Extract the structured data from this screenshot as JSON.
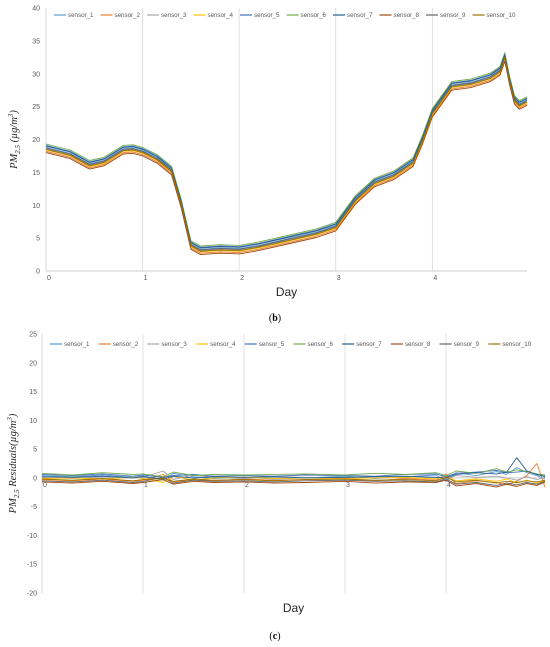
{
  "colors": [
    "#5B9BD5",
    "#ED7D31",
    "#A5A5A5",
    "#FFC000",
    "#4472C4",
    "#70AD47",
    "#255E91",
    "#9E480E",
    "#636363",
    "#997300"
  ],
  "chart_data": [
    {
      "type": "line",
      "panel": "(b)",
      "panel_letter": "b",
      "xlabel": "Day",
      "ylabel": "PM2.5 (µg/m³)",
      "ylabel_main": "PM",
      "ylabel_sub": "2.5",
      "ylabel_rest": " (µg/m",
      "ylabel_sup": "3",
      "ylabel_close": ")",
      "xlim": [
        0,
        4.98
      ],
      "ylim": [
        0,
        40
      ],
      "xticks": [
        0,
        1,
        2,
        3,
        4
      ],
      "yticks": [
        0,
        5,
        10,
        15,
        20,
        25,
        30,
        35,
        40
      ],
      "grid": "vertical",
      "legend_position": "top",
      "x": [
        0,
        0.25,
        0.45,
        0.6,
        0.8,
        0.9,
        1.0,
        1.15,
        1.3,
        1.4,
        1.5,
        1.6,
        1.8,
        2.0,
        2.2,
        2.5,
        2.8,
        3.0,
        3.2,
        3.4,
        3.6,
        3.8,
        3.9,
        4.0,
        4.2,
        4.4,
        4.6,
        4.7,
        4.75,
        4.8,
        4.85,
        4.9,
        4.98
      ],
      "series": [
        {
          "name": "sensor_1",
          "values": [
            18.8,
            17.9,
            16.3,
            16.8,
            18.6,
            18.7,
            18.3,
            17.2,
            15.4,
            10.4,
            4.1,
            3.3,
            3.5,
            3.4,
            3.9,
            4.9,
            5.9,
            6.9,
            10.9,
            13.6,
            14.7,
            16.7,
            20.2,
            24.2,
            28.3,
            28.7,
            29.6,
            30.6,
            32.7,
            29.1,
            26.2,
            25.4,
            26.0
          ]
        },
        {
          "name": "sensor_2",
          "values": [
            18.2,
            17.3,
            15.7,
            16.2,
            18.0,
            18.1,
            17.7,
            16.6,
            14.8,
            9.8,
            3.5,
            2.7,
            2.9,
            2.8,
            3.3,
            4.3,
            5.3,
            6.3,
            10.3,
            13.0,
            14.1,
            16.1,
            19.6,
            23.6,
            27.7,
            28.1,
            29.0,
            30.0,
            32.1,
            28.5,
            25.6,
            24.8,
            25.4
          ]
        },
        {
          "name": "sensor_3",
          "values": [
            18.6,
            17.7,
            16.1,
            16.6,
            18.4,
            18.5,
            18.1,
            17.0,
            15.2,
            10.2,
            3.9,
            3.1,
            3.3,
            3.2,
            3.7,
            4.7,
            5.7,
            6.7,
            10.7,
            13.4,
            14.5,
            16.5,
            20.0,
            24.0,
            28.1,
            28.5,
            29.4,
            30.4,
            32.5,
            28.9,
            26.0,
            25.2,
            25.8
          ]
        },
        {
          "name": "sensor_4",
          "values": [
            18.4,
            17.5,
            15.9,
            16.4,
            18.2,
            18.3,
            17.9,
            16.8,
            15.0,
            10.0,
            3.7,
            2.9,
            3.1,
            3.0,
            3.5,
            4.5,
            5.5,
            6.5,
            10.5,
            13.2,
            14.3,
            16.3,
            19.8,
            23.8,
            27.9,
            28.3,
            29.2,
            30.2,
            32.3,
            28.7,
            25.8,
            25.0,
            25.6
          ]
        },
        {
          "name": "sensor_5",
          "values": [
            19.1,
            18.2,
            16.6,
            17.1,
            18.9,
            19.0,
            18.6,
            17.5,
            15.7,
            10.7,
            4.4,
            3.6,
            3.8,
            3.7,
            4.2,
            5.2,
            6.2,
            7.2,
            11.2,
            13.9,
            15.0,
            17.0,
            20.5,
            24.5,
            28.6,
            29.0,
            29.9,
            30.9,
            33.0,
            29.4,
            26.5,
            25.7,
            26.3
          ]
        },
        {
          "name": "sensor_6",
          "values": [
            19.3,
            18.4,
            16.8,
            17.3,
            19.1,
            19.2,
            18.8,
            17.7,
            15.9,
            10.9,
            4.6,
            3.8,
            4.0,
            3.9,
            4.4,
            5.4,
            6.4,
            7.4,
            11.4,
            14.1,
            15.2,
            17.2,
            20.7,
            24.7,
            28.8,
            29.2,
            30.1,
            31.1,
            33.2,
            29.6,
            26.7,
            25.9,
            26.5
          ]
        },
        {
          "name": "sensor_7",
          "values": [
            19.0,
            18.1,
            16.5,
            17.0,
            18.8,
            18.9,
            18.5,
            17.4,
            15.6,
            10.6,
            4.3,
            3.5,
            3.7,
            3.6,
            4.1,
            5.1,
            6.1,
            7.1,
            11.1,
            13.8,
            14.9,
            16.9,
            20.4,
            24.4,
            28.5,
            28.9,
            29.8,
            30.8,
            32.9,
            29.3,
            26.4,
            25.6,
            26.2
          ]
        },
        {
          "name": "sensor_8",
          "values": [
            18.0,
            17.1,
            15.5,
            16.0,
            17.8,
            17.9,
            17.5,
            16.4,
            14.6,
            9.6,
            3.3,
            2.5,
            2.7,
            2.6,
            3.1,
            4.1,
            5.1,
            6.1,
            10.1,
            12.8,
            13.9,
            15.9,
            19.4,
            23.4,
            27.5,
            27.9,
            28.8,
            29.8,
            31.9,
            28.3,
            25.4,
            24.6,
            25.2
          ]
        },
        {
          "name": "sensor_9",
          "values": [
            18.7,
            17.8,
            16.2,
            16.7,
            18.5,
            18.6,
            18.2,
            17.1,
            15.3,
            10.3,
            4.0,
            3.2,
            3.4,
            3.3,
            3.8,
            4.8,
            5.8,
            6.8,
            10.8,
            13.5,
            14.6,
            16.6,
            20.1,
            24.1,
            28.2,
            28.6,
            29.5,
            30.5,
            32.6,
            29.0,
            26.1,
            25.3,
            25.9
          ]
        },
        {
          "name": "sensor_10",
          "values": [
            18.5,
            17.6,
            16.0,
            16.5,
            18.3,
            18.4,
            18.0,
            16.9,
            15.1,
            10.1,
            3.8,
            3.0,
            3.2,
            3.1,
            3.6,
            4.6,
            5.6,
            6.6,
            10.6,
            13.3,
            14.4,
            16.4,
            19.9,
            23.9,
            28.0,
            28.4,
            29.3,
            30.3,
            32.4,
            28.8,
            25.9,
            25.1,
            25.7
          ]
        }
      ]
    },
    {
      "type": "line",
      "panel": "(c)",
      "panel_letter": "c",
      "xlabel": "Day",
      "ylabel": "PM2.5 Residuals(µg/m³)",
      "ylabel_main": "PM",
      "ylabel_sub": "2.5",
      "ylabel_rest": " Residuals(µg/m",
      "ylabel_sup": "3",
      "ylabel_close": ")",
      "xlim": [
        0,
        4.98
      ],
      "ylim": [
        -20,
        25
      ],
      "xticks": [
        0,
        1,
        2,
        3,
        4
      ],
      "yticks": [
        -20,
        -15,
        -10,
        -5,
        0,
        5,
        10,
        15,
        20,
        25
      ],
      "grid": "vertical",
      "legend_position": "top",
      "x": [
        0,
        0.3,
        0.6,
        0.9,
        1.0,
        1.2,
        1.3,
        1.5,
        1.7,
        2.0,
        2.3,
        2.6,
        3.0,
        3.3,
        3.6,
        3.9,
        4.0,
        4.1,
        4.3,
        4.5,
        4.6,
        4.7,
        4.8,
        4.9,
        4.98
      ],
      "series": [
        {
          "name": "sensor_1",
          "values": [
            0.4,
            0.2,
            0.5,
            0.1,
            0.3,
            -0.4,
            0.8,
            0.2,
            -0.1,
            0.1,
            -0.2,
            0.0,
            0.3,
            -0.1,
            0.2,
            0.5,
            -0.6,
            0.9,
            0.4,
            1.1,
            0.6,
            1.8,
            0.9,
            0.4,
            -0.2
          ]
        },
        {
          "name": "sensor_2",
          "values": [
            -0.3,
            -0.5,
            -0.2,
            -0.6,
            -0.4,
            0.6,
            -0.7,
            -0.3,
            -0.5,
            -0.2,
            -0.4,
            -0.3,
            -0.2,
            -0.5,
            -0.1,
            -0.4,
            0.7,
            -1.0,
            -0.5,
            -0.8,
            -1.2,
            -0.6,
            0.4,
            2.5,
            -1.6
          ]
        },
        {
          "name": "sensor_3",
          "values": [
            0.1,
            -0.1,
            0.2,
            0.0,
            0.1,
            1.2,
            -0.3,
            0.5,
            0.1,
            -0.1,
            0.2,
            0.1,
            0.0,
            0.2,
            0.0,
            0.1,
            -0.2,
            0.4,
            0.1,
            0.3,
            0.0,
            -0.4,
            0.2,
            -0.3,
            0.1
          ]
        },
        {
          "name": "sensor_4",
          "values": [
            -0.1,
            0.0,
            -0.2,
            0.1,
            -0.1,
            -0.8,
            0.3,
            -0.4,
            0.0,
            0.1,
            -0.1,
            0.0,
            -0.1,
            0.0,
            0.1,
            -0.2,
            0.3,
            -0.5,
            -0.2,
            -0.6,
            -0.2,
            -0.9,
            -0.4,
            -0.9,
            -0.5
          ]
        },
        {
          "name": "sensor_5",
          "values": [
            0.6,
            0.4,
            0.7,
            0.3,
            0.5,
            0.1,
            0.4,
            0.6,
            0.3,
            0.4,
            0.3,
            0.5,
            0.4,
            0.3,
            0.6,
            0.7,
            0.2,
            0.8,
            1.0,
            1.3,
            0.9,
            1.0,
            1.2,
            0.6,
            0.3
          ]
        },
        {
          "name": "sensor_6",
          "values": [
            0.8,
            0.5,
            0.9,
            0.6,
            0.7,
            0.2,
            1.0,
            0.4,
            0.6,
            0.5,
            0.6,
            0.7,
            0.5,
            0.8,
            0.6,
            0.9,
            0.4,
            1.2,
            0.8,
            1.6,
            1.0,
            1.4,
            1.1,
            0.7,
            0.5
          ]
        },
        {
          "name": "sensor_7",
          "values": [
            0.2,
            0.1,
            0.3,
            0.0,
            0.2,
            -0.2,
            0.3,
            0.0,
            0.2,
            0.1,
            0.2,
            0.0,
            0.1,
            0.2,
            0.3,
            0.1,
            0.0,
            0.6,
            0.9,
            0.7,
            1.0,
            3.5,
            1.2,
            0.6,
            0.2
          ]
        },
        {
          "name": "sensor_8",
          "values": [
            -0.7,
            -0.9,
            -0.6,
            -1.0,
            -0.8,
            -0.3,
            -1.1,
            -0.6,
            -0.8,
            -0.7,
            -0.9,
            -0.8,
            -0.6,
            -0.9,
            -0.7,
            -0.8,
            -0.4,
            -1.4,
            -1.0,
            -1.6,
            -1.1,
            -1.5,
            -1.0,
            -1.3,
            -0.7
          ]
        },
        {
          "name": "sensor_9",
          "values": [
            -0.5,
            -0.7,
            -0.4,
            -0.8,
            -0.6,
            0.1,
            -0.9,
            -0.4,
            -0.6,
            -0.5,
            -0.7,
            -0.5,
            -0.4,
            -0.6,
            -0.5,
            -0.7,
            -0.2,
            -1.1,
            -0.8,
            -1.3,
            -0.9,
            -1.2,
            -0.8,
            -1.1,
            -0.6
          ]
        },
        {
          "name": "sensor_10",
          "values": [
            -0.2,
            -0.4,
            -0.1,
            -0.5,
            -0.3,
            -0.1,
            -0.6,
            -0.2,
            -0.4,
            -0.3,
            -0.5,
            -0.3,
            -0.2,
            -0.4,
            -0.3,
            -0.5,
            0.1,
            -0.7,
            -0.4,
            -0.9,
            -0.6,
            -0.8,
            -0.5,
            -0.7,
            -0.4
          ]
        }
      ]
    }
  ]
}
